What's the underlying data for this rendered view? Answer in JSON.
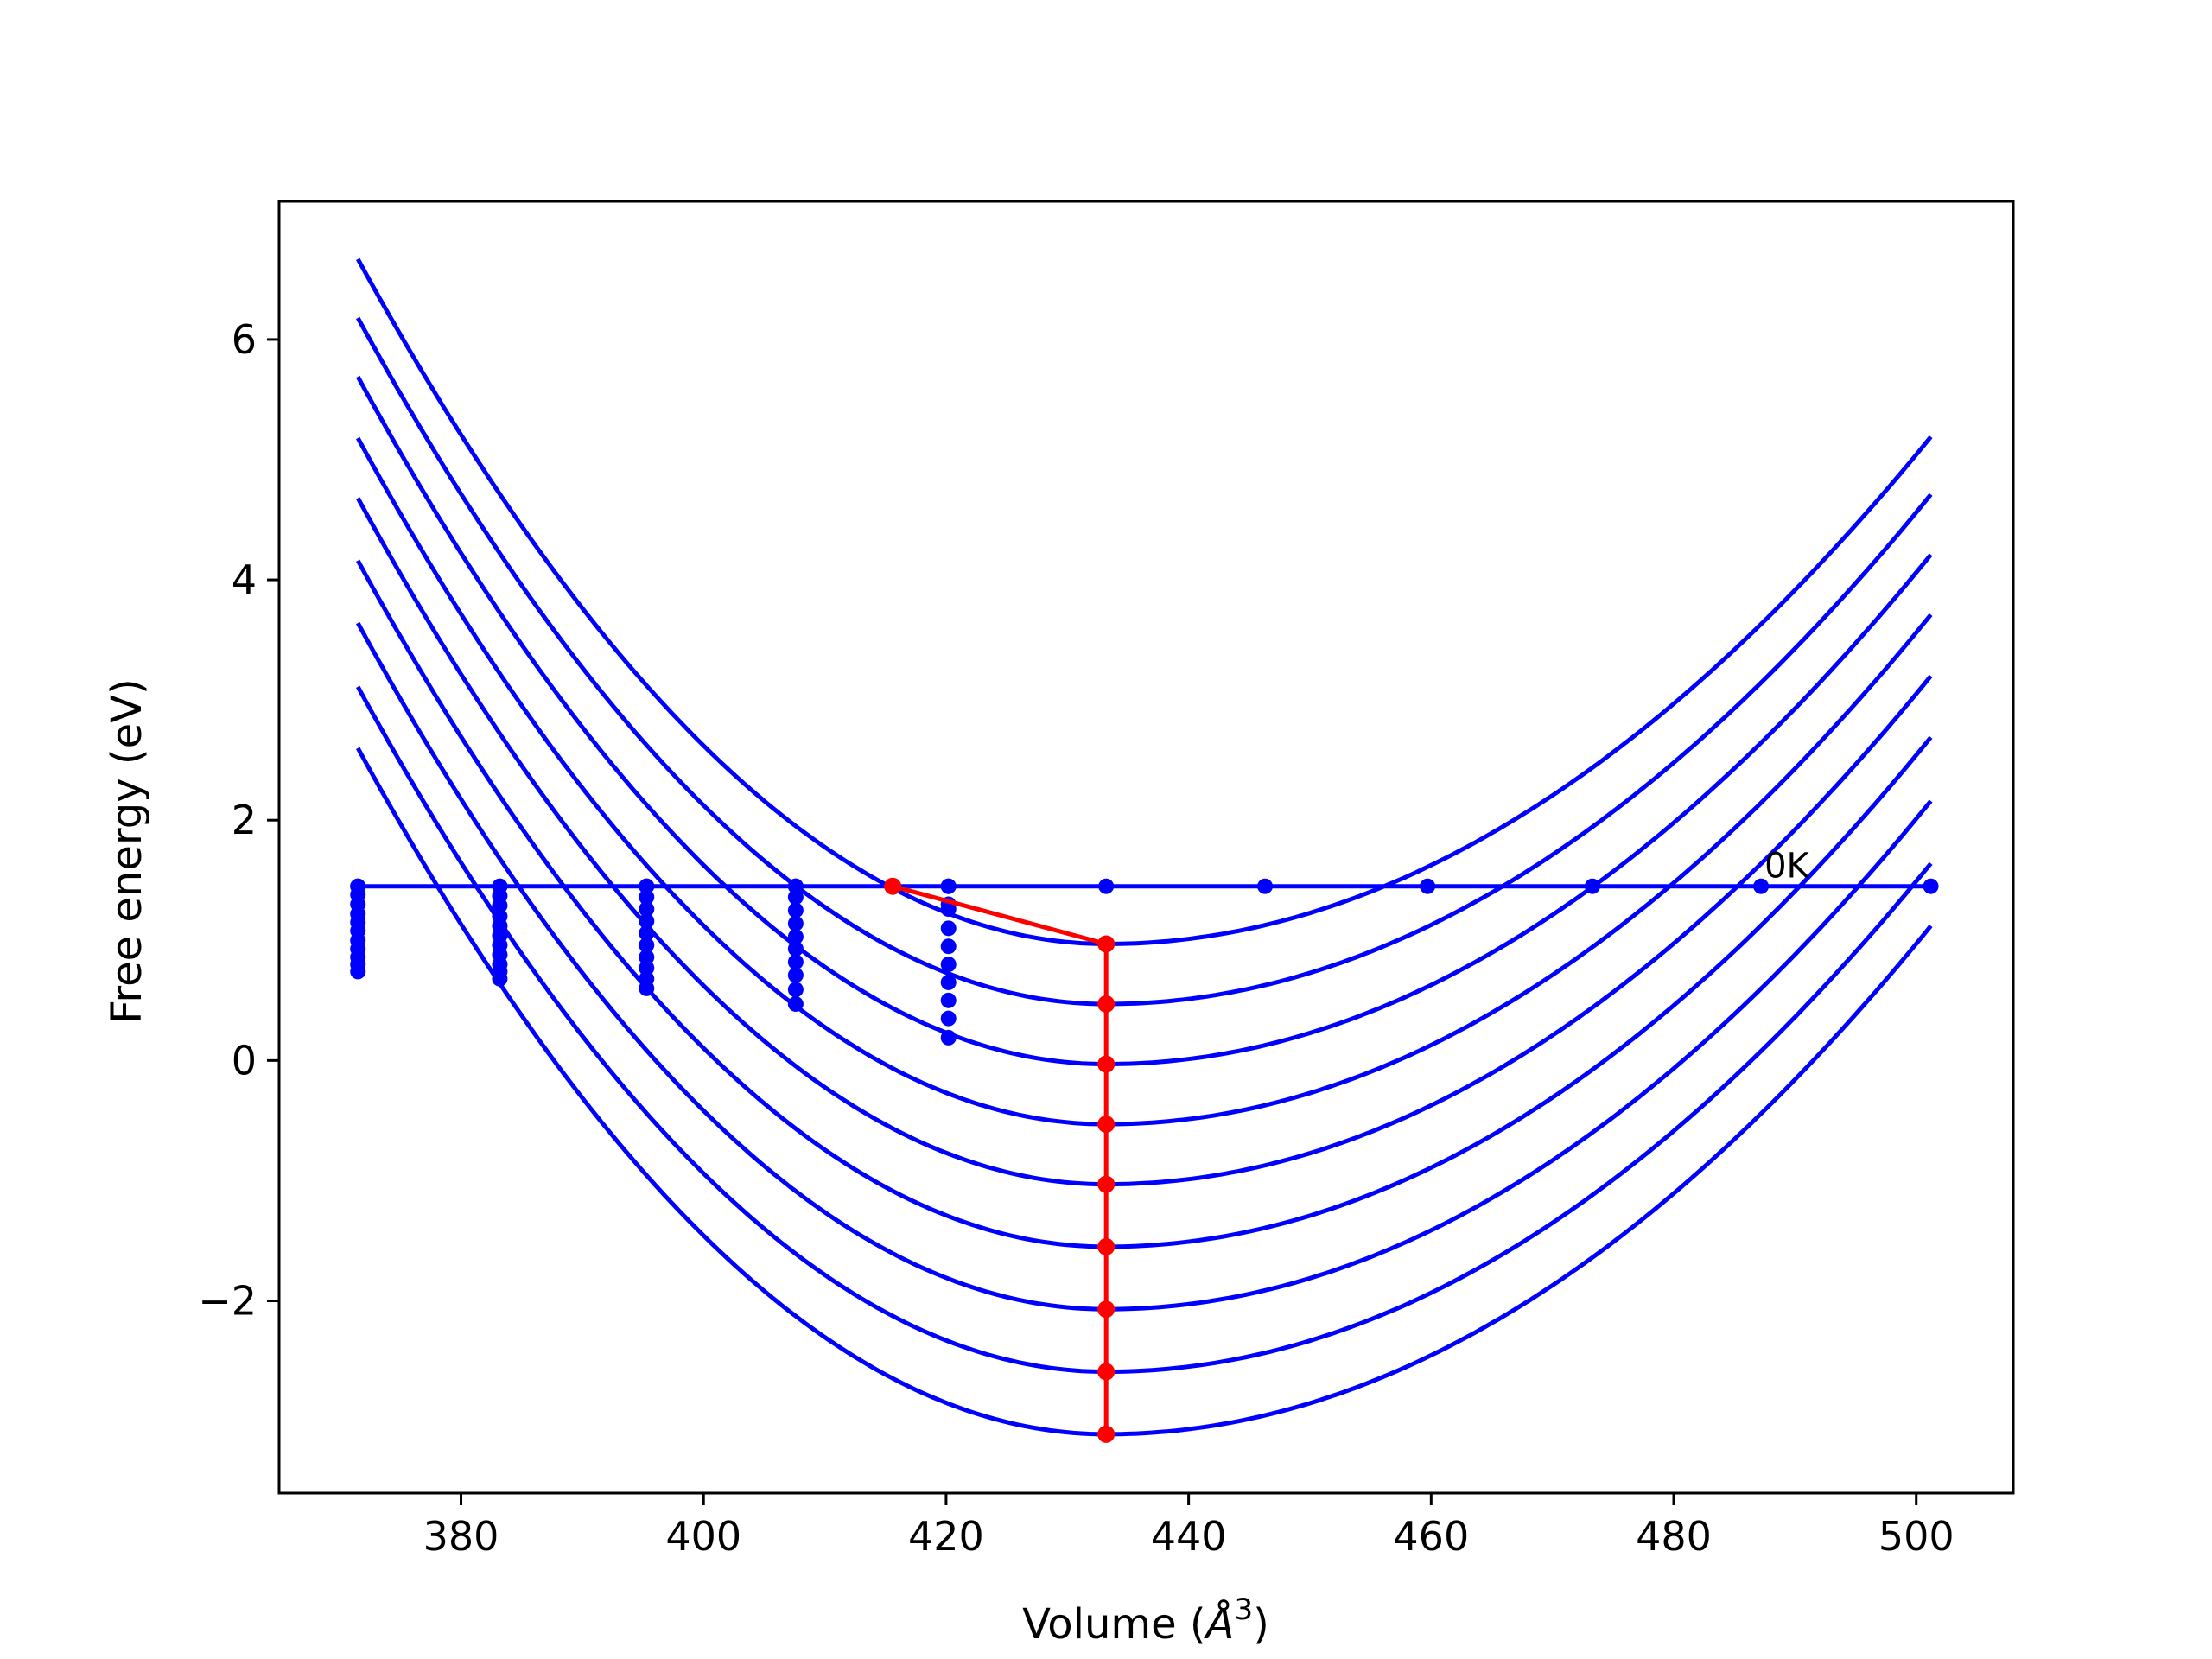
{
  "chart_data": {
    "type": "line",
    "title": "",
    "xlabel": "Volume (",
    "xlabel_symbol": "Å",
    "xlabel_exponent": "3",
    "xlabel_close": ")",
    "ylabel": "Free energy (eV)",
    "xlim": [
      365,
      508
    ],
    "ylim": [
      -3.6,
      7.15
    ],
    "xticks": [
      380,
      400,
      420,
      440,
      460,
      480,
      500
    ],
    "yticks": [
      -2,
      0,
      2,
      4,
      6
    ],
    "ytick_labels": [
      "−2",
      "0",
      "2",
      "4",
      "6"
    ],
    "grid": false,
    "annotation": {
      "text": "0K",
      "x": 487.2,
      "y": 1.45
    },
    "colors": {
      "curves": "#0000ff",
      "minimum": "#ff0000"
    },
    "curves": {
      "x_start": 371.5,
      "x_end": 501.2,
      "x_min": 433.2,
      "y_min": [
        0.97,
        0.47,
        -0.03,
        -0.53,
        -1.03,
        -1.55,
        -2.07,
        -2.59,
        -3.11
      ],
      "y_at_x_start": [
        6.67,
        6.18,
        5.69,
        5.18,
        4.68,
        4.16,
        3.64,
        3.11,
        2.6
      ],
      "y_at_x_end": [
        5.19,
        4.71,
        4.21,
        3.71,
        3.2,
        2.69,
        2.16,
        1.64,
        1.12
      ]
    },
    "reference_line": {
      "x": [
        371.5,
        383.2,
        395.3,
        407.6,
        420.2,
        433.2,
        446.3,
        459.7,
        473.3,
        487.2,
        501.2
      ],
      "y": [
        1.45,
        1.45,
        1.45,
        1.45,
        1.45,
        1.45,
        1.45,
        1.45,
        1.45,
        1.45,
        1.45
      ]
    },
    "point_columns": [
      {
        "x": 371.5,
        "y": [
          1.45,
          1.38,
          1.3,
          1.22,
          1.15,
          1.08,
          1.0,
          0.93,
          0.86,
          0.8,
          0.74
        ]
      },
      {
        "x": 383.2,
        "y": [
          1.45,
          1.37,
          1.29,
          1.2,
          1.12,
          1.04,
          0.96,
          0.88,
          0.8,
          0.74,
          0.68
        ]
      },
      {
        "x": 395.3,
        "y": [
          1.45,
          1.36,
          1.26,
          1.16,
          1.06,
          0.96,
          0.86,
          0.77,
          0.68,
          0.6
        ]
      },
      {
        "x": 407.6,
        "y": [
          1.45,
          1.36,
          1.25,
          1.14,
          1.03,
          0.93,
          0.82,
          0.71,
          0.59,
          0.47
        ]
      },
      {
        "x": 420.2,
        "y": [
          1.45,
          1.3,
          1.26,
          1.1,
          0.95,
          0.8,
          0.65,
          0.5,
          0.35,
          0.19
        ]
      }
    ],
    "minimum_path": {
      "x": [
        415.6,
        433.2,
        433.2,
        433.2,
        433.2,
        433.2,
        433.2,
        433.2,
        433.2,
        433.2
      ],
      "y": [
        1.45,
        0.97,
        0.47,
        -0.03,
        -0.53,
        -1.03,
        -1.55,
        -2.07,
        -2.59,
        -3.11
      ]
    }
  }
}
